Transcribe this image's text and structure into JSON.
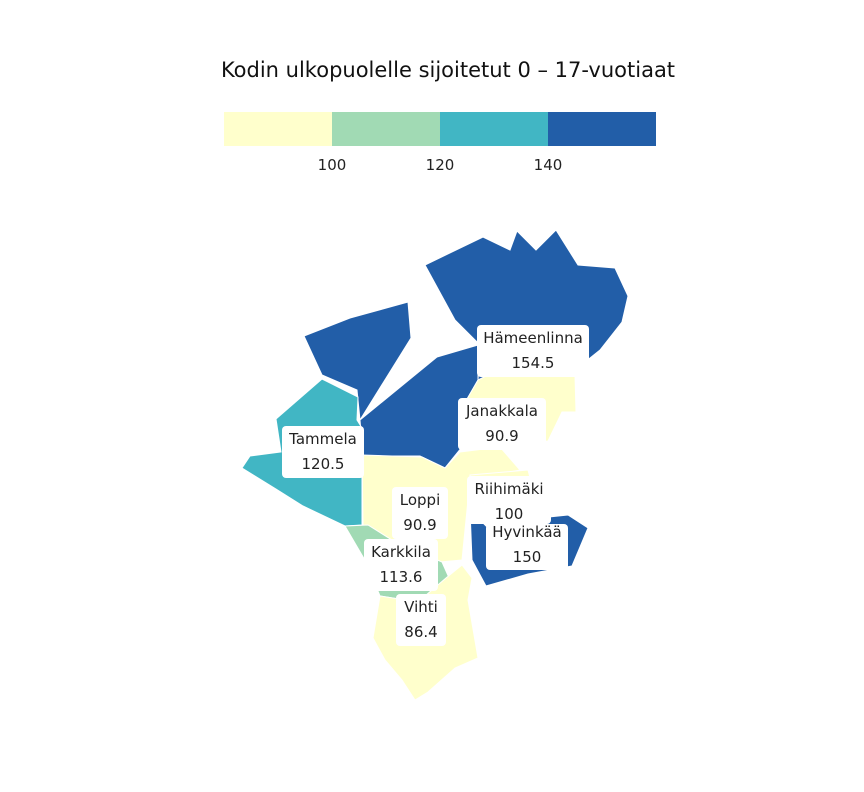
{
  "title": "Kodin ulkopuolelle sijoitetut 0 – 17-vuotiaat",
  "legend": {
    "colors": [
      "#ffffcc",
      "#a1dab4",
      "#41b6c4",
      "#225ea8"
    ],
    "breaks": [
      "100",
      "120",
      "140"
    ]
  },
  "regions": [
    {
      "id": "hameenlinna",
      "name": "Hämeenlinna",
      "value": "154.5",
      "color": "#225ea8"
    },
    {
      "id": "janakkala",
      "name": "Janakkala",
      "value": "90.9",
      "color": "#ffffcc"
    },
    {
      "id": "tammela",
      "name": "Tammela",
      "value": "120.5",
      "color": "#41b6c4"
    },
    {
      "id": "riihimaki",
      "name": "Riihimäki",
      "value": "100",
      "color": "#ffffcc"
    },
    {
      "id": "loppi",
      "name": "Loppi",
      "value": "90.9",
      "color": "#ffffcc"
    },
    {
      "id": "hyvinkaa",
      "name": "Hyvinkää",
      "value": "150",
      "color": "#225ea8"
    },
    {
      "id": "karkkila",
      "name": "Karkkila",
      "value": "113.6",
      "color": "#a1dab4"
    },
    {
      "id": "vihti",
      "name": "Vihti",
      "value": "86.4",
      "color": "#ffffcc"
    }
  ]
}
